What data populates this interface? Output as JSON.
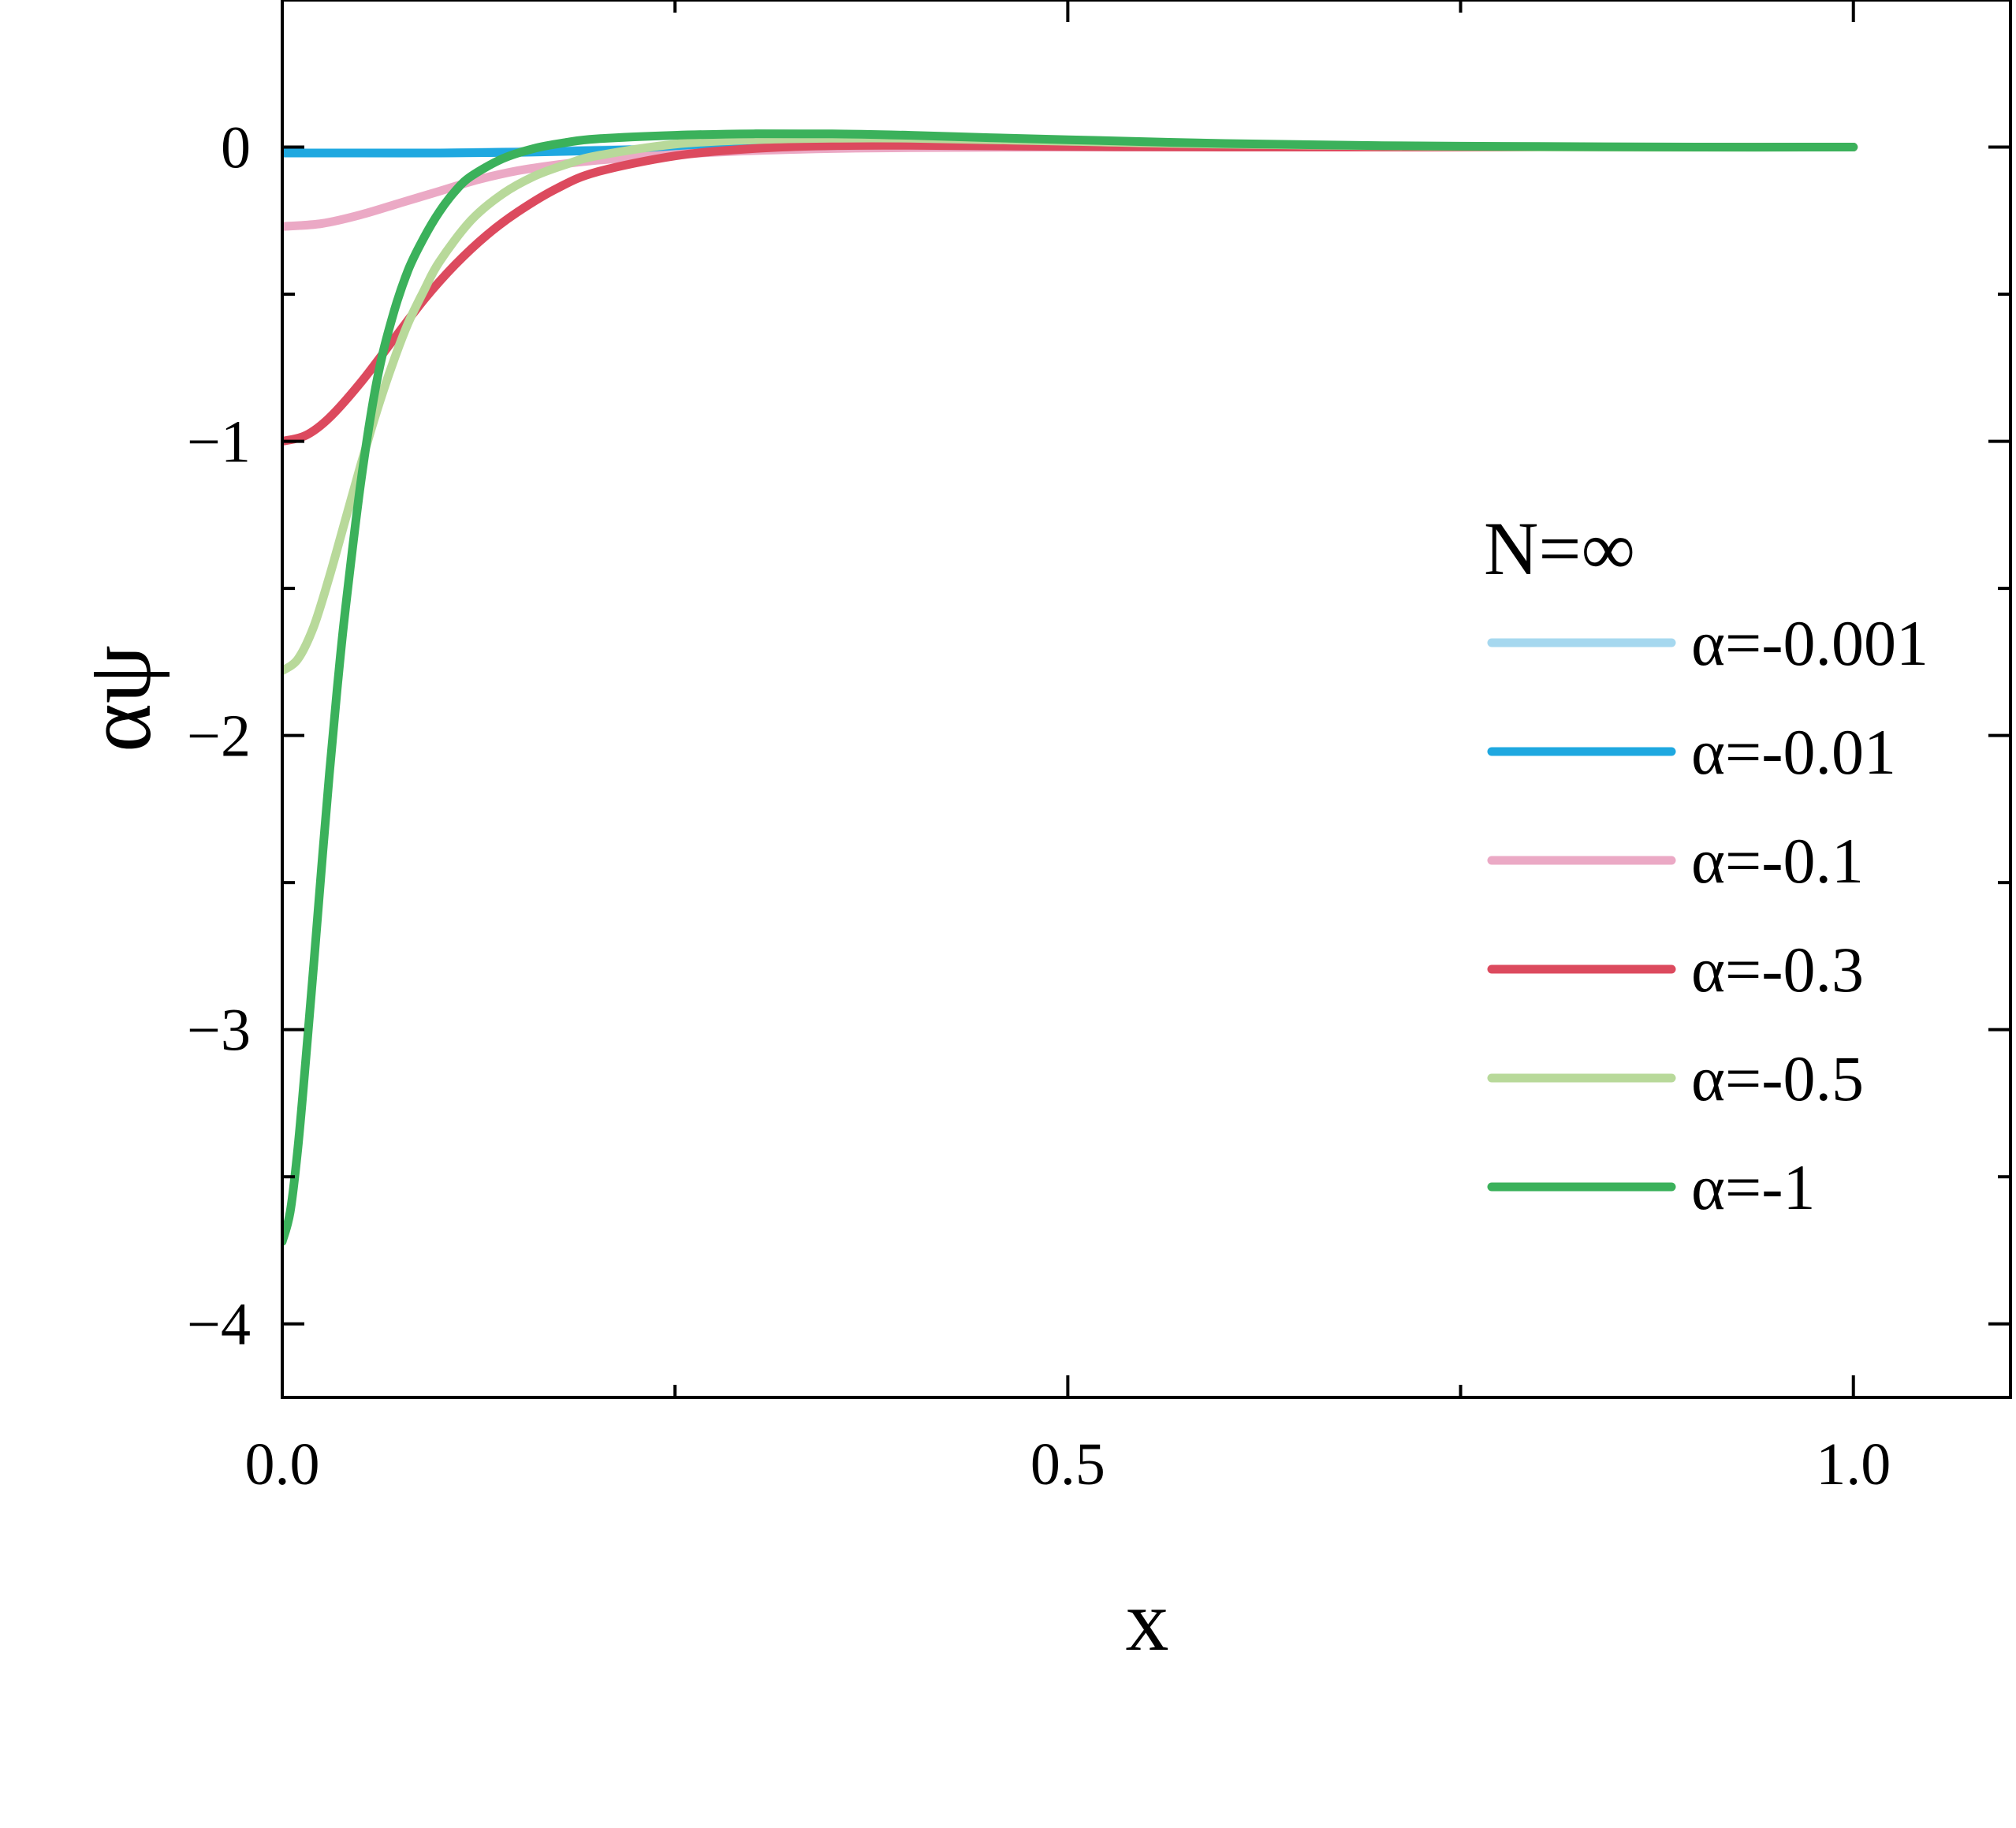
{
  "chart_data": {
    "type": "line",
    "title": "",
    "xlabel": "x",
    "ylabel": "αψ",
    "xlim": [
      0.0,
      1.1
    ],
    "ylim": [
      -4.25,
      0.5
    ],
    "x_ticks": [
      {
        "value": 0.0,
        "label": "0.0"
      },
      {
        "value": 0.5,
        "label": "0.5"
      },
      {
        "value": 1.0,
        "label": "1.0"
      }
    ],
    "x_minor_ticks": [
      0.25,
      0.75
    ],
    "y_ticks": [
      {
        "value": 0,
        "label": "0"
      },
      {
        "value": -1,
        "label": "−1"
      },
      {
        "value": -2,
        "label": "−2"
      },
      {
        "value": -3,
        "label": "−3"
      },
      {
        "value": -4,
        "label": "−4"
      }
    ],
    "y_minor_ticks": [
      -0.5,
      -1.5,
      -2.5,
      -3.5
    ],
    "grid": false,
    "legend": {
      "title": "N=∞",
      "placement": "right"
    },
    "series": [
      {
        "name": "α=-0.001",
        "color": "#a6d8ef",
        "x": [
          0.0,
          0.05,
          0.1,
          0.15,
          0.2,
          0.25,
          0.3,
          0.4,
          0.5,
          0.6,
          0.8,
          1.0
        ],
        "y": [
          -0.02,
          -0.02,
          -0.02,
          -0.015,
          -0.01,
          -0.005,
          0.0,
          0.0,
          0.0,
          0.0,
          0.0,
          0.0
        ]
      },
      {
        "name": "α=-0.01",
        "color": "#1fa8e0",
        "x": [
          0.0,
          0.05,
          0.1,
          0.15,
          0.2,
          0.25,
          0.3,
          0.4,
          0.5,
          0.6,
          0.8,
          1.0
        ],
        "y": [
          -0.02,
          -0.02,
          -0.02,
          -0.018,
          -0.012,
          -0.006,
          0.0,
          0.0,
          0.0,
          0.0,
          0.0,
          0.0
        ]
      },
      {
        "name": "α=-0.1",
        "color": "#eba9c5",
        "x": [
          0.0,
          0.025,
          0.05,
          0.075,
          0.1,
          0.125,
          0.15,
          0.175,
          0.2,
          0.25,
          0.3,
          0.35,
          0.4,
          0.5,
          0.6,
          0.8,
          1.0
        ],
        "y": [
          -0.27,
          -0.26,
          -0.23,
          -0.19,
          -0.15,
          -0.11,
          -0.08,
          -0.06,
          -0.045,
          -0.025,
          -0.012,
          -0.005,
          -0.002,
          0.0,
          0.0,
          0.0,
          0.0
        ]
      },
      {
        "name": "α=-0.3",
        "color": "#dc4a5e",
        "x": [
          0.0,
          0.015,
          0.03,
          0.05,
          0.07,
          0.09,
          0.11,
          0.13,
          0.15,
          0.175,
          0.2,
          0.25,
          0.3,
          0.35,
          0.4,
          0.5,
          0.6,
          0.8,
          1.0
        ],
        "y": [
          -1.0,
          -0.98,
          -0.92,
          -0.8,
          -0.66,
          -0.52,
          -0.4,
          -0.3,
          -0.22,
          -0.14,
          -0.085,
          -0.03,
          -0.005,
          0.005,
          0.006,
          0.002,
          0.0,
          0.0,
          0.0
        ]
      },
      {
        "name": "α=-0.5",
        "color": "#b8d99a",
        "x": [
          0.0,
          0.01,
          0.02,
          0.03,
          0.04,
          0.05,
          0.06,
          0.07,
          0.08,
          0.09,
          0.1,
          0.12,
          0.14,
          0.16,
          0.18,
          0.2,
          0.25,
          0.3,
          0.35,
          0.4,
          0.5,
          0.6,
          0.8,
          1.0
        ],
        "y": [
          -1.78,
          -1.74,
          -1.63,
          -1.46,
          -1.27,
          -1.08,
          -0.9,
          -0.74,
          -0.6,
          -0.49,
          -0.39,
          -0.25,
          -0.16,
          -0.1,
          -0.06,
          -0.03,
          0.01,
          0.025,
          0.03,
          0.03,
          0.02,
          0.01,
          0.0,
          0.0
        ]
      },
      {
        "name": "α=-1",
        "color": "#3bb15b",
        "x": [
          0.0,
          0.005,
          0.01,
          0.015,
          0.02,
          0.025,
          0.03,
          0.035,
          0.04,
          0.05,
          0.06,
          0.07,
          0.08,
          0.09,
          0.1,
          0.11,
          0.12,
          0.14,
          0.16,
          0.18,
          0.2,
          0.25,
          0.3,
          0.35,
          0.4,
          0.45,
          0.5,
          0.6,
          0.7,
          0.8,
          0.9,
          1.0
        ],
        "y": [
          -3.72,
          -3.62,
          -3.4,
          -3.1,
          -2.78,
          -2.45,
          -2.13,
          -1.84,
          -1.58,
          -1.14,
          -0.8,
          -0.58,
          -0.42,
          -0.31,
          -0.22,
          -0.15,
          -0.1,
          -0.04,
          -0.005,
          0.015,
          0.028,
          0.04,
          0.045,
          0.045,
          0.04,
          0.032,
          0.025,
          0.012,
          0.005,
          0.002,
          0.0,
          0.0
        ]
      }
    ]
  }
}
